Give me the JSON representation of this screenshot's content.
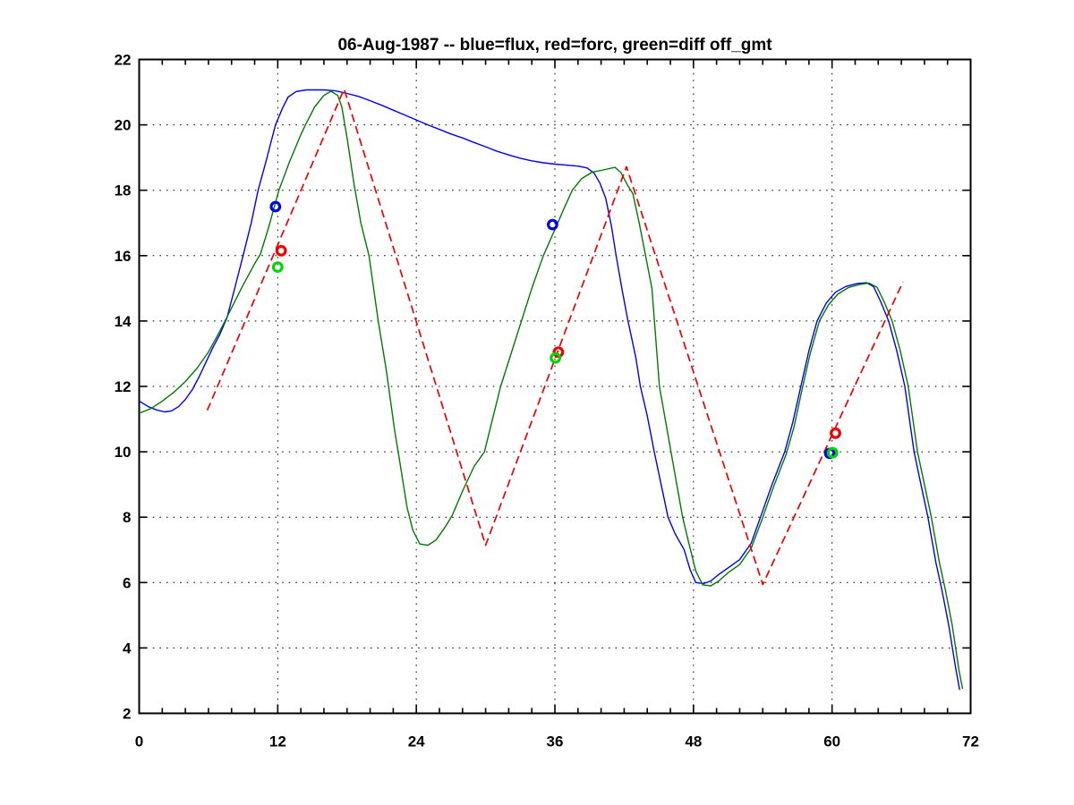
{
  "window": {
    "background": "#ffffff"
  },
  "chart_data": {
    "type": "line",
    "title": "06-Aug-1987 -- blue=flux, red=forc, green=diff off_gmt",
    "xlabel": "",
    "ylabel": "",
    "xlim": [
      0,
      72
    ],
    "ylim": [
      2,
      22
    ],
    "x_major_ticks": [
      0,
      12,
      24,
      36,
      48,
      60,
      72
    ],
    "x_minor_tick_step": 2,
    "y_ticks": [
      2,
      4,
      6,
      8,
      10,
      12,
      14,
      16,
      18,
      20,
      22
    ],
    "grid_x": [
      12,
      24,
      36,
      48,
      60
    ],
    "grid_y": [
      4,
      6,
      8,
      10,
      12,
      14,
      16,
      18,
      20
    ],
    "grid_style": "dotted",
    "axis_color": "#000000",
    "series": [
      {
        "name": "flux",
        "color": "#0000EE",
        "style": "solid",
        "points": [
          [
            0,
            11.55
          ],
          [
            0.8,
            11.38
          ],
          [
            1.5,
            11.28
          ],
          [
            2.2,
            11.22
          ],
          [
            2.8,
            11.25
          ],
          [
            3.4,
            11.38
          ],
          [
            4,
            11.6
          ],
          [
            4.6,
            11.9
          ],
          [
            5.2,
            12.3
          ],
          [
            5.8,
            12.75
          ],
          [
            6.4,
            13.2
          ],
          [
            7,
            13.6
          ],
          [
            7.6,
            14.1
          ],
          [
            8.2,
            14.9
          ],
          [
            9,
            16.0
          ],
          [
            9.7,
            17.0
          ],
          [
            10.3,
            18.0
          ],
          [
            11,
            18.9
          ],
          [
            11.8,
            20.0
          ],
          [
            12.4,
            20.5
          ],
          [
            12.9,
            20.85
          ],
          [
            13.6,
            21.02
          ],
          [
            14.5,
            21.07
          ],
          [
            16,
            21.07
          ],
          [
            17,
            21.04
          ],
          [
            18,
            20.96
          ],
          [
            19,
            20.87
          ],
          [
            20,
            20.74
          ],
          [
            21,
            20.6
          ],
          [
            22,
            20.45
          ],
          [
            23,
            20.3
          ],
          [
            24,
            20.15
          ],
          [
            25,
            20.0
          ],
          [
            26,
            19.86
          ],
          [
            27,
            19.72
          ],
          [
            28,
            19.6
          ],
          [
            29,
            19.46
          ],
          [
            30,
            19.33
          ],
          [
            31,
            19.19
          ],
          [
            32,
            19.08
          ],
          [
            33,
            18.98
          ],
          [
            34,
            18.9
          ],
          [
            35,
            18.84
          ],
          [
            36,
            18.8
          ],
          [
            37,
            18.77
          ],
          [
            38,
            18.74
          ],
          [
            38.8,
            18.68
          ],
          [
            39.4,
            18.52
          ],
          [
            39.9,
            18.22
          ],
          [
            40.4,
            17.75
          ],
          [
            40.9,
            16.9
          ],
          [
            41.3,
            16.0
          ],
          [
            41.8,
            15.0
          ],
          [
            42.3,
            14.05
          ],
          [
            43,
            12.9
          ],
          [
            43.4,
            12.0
          ],
          [
            44,
            11.1
          ],
          [
            44.6,
            10.0
          ],
          [
            45.2,
            9.0
          ],
          [
            45.8,
            8.0
          ],
          [
            46.4,
            7.5
          ],
          [
            47.2,
            7.0
          ],
          [
            47.7,
            6.4
          ],
          [
            48.2,
            6.0
          ],
          [
            48.9,
            5.97
          ],
          [
            49.5,
            6.05
          ],
          [
            50.2,
            6.25
          ],
          [
            51,
            6.45
          ],
          [
            52,
            6.7
          ],
          [
            53,
            7.2
          ],
          [
            53.8,
            8.0
          ],
          [
            54.8,
            9.0
          ],
          [
            55.9,
            10.0
          ],
          [
            56.6,
            10.9
          ],
          [
            57.3,
            12.0
          ],
          [
            58,
            13.1
          ],
          [
            58.7,
            14.0
          ],
          [
            59.5,
            14.55
          ],
          [
            60.3,
            14.88
          ],
          [
            61.2,
            15.06
          ],
          [
            62.2,
            15.15
          ],
          [
            63,
            15.17
          ],
          [
            63.6,
            15.05
          ],
          [
            64.2,
            14.6
          ],
          [
            64.9,
            14.0
          ],
          [
            65.6,
            13.1
          ],
          [
            66.3,
            12.0
          ],
          [
            67.1,
            10.0
          ],
          [
            67.7,
            9.0
          ],
          [
            68.3,
            8.0
          ],
          [
            69,
            6.6
          ],
          [
            69.5,
            5.8
          ],
          [
            70.1,
            4.7
          ],
          [
            70.7,
            3.4
          ],
          [
            71.05,
            2.72
          ]
        ]
      },
      {
        "name": "diff",
        "color": "#007A00",
        "style": "solid",
        "points": [
          [
            0,
            11.18
          ],
          [
            1,
            11.32
          ],
          [
            2,
            11.55
          ],
          [
            3,
            11.82
          ],
          [
            4,
            12.15
          ],
          [
            5,
            12.55
          ],
          [
            6,
            13.05
          ],
          [
            7,
            13.7
          ],
          [
            8,
            14.4
          ],
          [
            9,
            15.1
          ],
          [
            10,
            15.75
          ],
          [
            10.5,
            16.05
          ],
          [
            11.2,
            16.85
          ],
          [
            12.1,
            18.0
          ],
          [
            13,
            18.85
          ],
          [
            14,
            19.7
          ],
          [
            14.4,
            20.0
          ],
          [
            15.2,
            20.55
          ],
          [
            16,
            20.9
          ],
          [
            16.6,
            21.03
          ],
          [
            17.2,
            20.9
          ],
          [
            17.55,
            20.55
          ],
          [
            18.0,
            19.6
          ],
          [
            18.6,
            18.2
          ],
          [
            19.2,
            17.0
          ],
          [
            19.9,
            16.0
          ],
          [
            20.7,
            14.0
          ],
          [
            21.4,
            12.5
          ],
          [
            22.1,
            10.7
          ],
          [
            22.7,
            9.4
          ],
          [
            23.2,
            8.3
          ],
          [
            23.7,
            7.6
          ],
          [
            24.3,
            7.18
          ],
          [
            25.0,
            7.14
          ],
          [
            25.7,
            7.3
          ],
          [
            26.5,
            7.7
          ],
          [
            27.1,
            8.05
          ],
          [
            28,
            8.8
          ],
          [
            29,
            9.55
          ],
          [
            29.9,
            10.0
          ],
          [
            30.6,
            11.0
          ],
          [
            31.3,
            12.0
          ],
          [
            32.2,
            13.0
          ],
          [
            33.1,
            14.0
          ],
          [
            34,
            15.0
          ],
          [
            35,
            16.0
          ],
          [
            36,
            16.8
          ],
          [
            36.8,
            17.45
          ],
          [
            37.5,
            18.0
          ],
          [
            38.3,
            18.35
          ],
          [
            39.2,
            18.55
          ],
          [
            40.2,
            18.62
          ],
          [
            41.2,
            18.7
          ],
          [
            41.7,
            18.55
          ],
          [
            42.3,
            18.15
          ],
          [
            42.75,
            17.9
          ],
          [
            43.3,
            17.0
          ],
          [
            43.85,
            16.0
          ],
          [
            44.4,
            15.0
          ],
          [
            45.05,
            12.0
          ],
          [
            46.05,
            10.0
          ],
          [
            47.06,
            8.0
          ],
          [
            47.6,
            7.2
          ],
          [
            48.2,
            6.35
          ],
          [
            48.8,
            5.93
          ],
          [
            49.5,
            5.9
          ],
          [
            50.2,
            6.05
          ],
          [
            51,
            6.3
          ],
          [
            52,
            6.55
          ],
          [
            53,
            7.05
          ],
          [
            53.9,
            7.9
          ],
          [
            54.9,
            8.9
          ],
          [
            56,
            9.9
          ],
          [
            56.7,
            10.75
          ],
          [
            57.4,
            11.9
          ],
          [
            58.1,
            13.0
          ],
          [
            58.9,
            14.0
          ],
          [
            59.7,
            14.5
          ],
          [
            60.5,
            14.82
          ],
          [
            61.4,
            15.02
          ],
          [
            62.4,
            15.12
          ],
          [
            63.2,
            15.16
          ],
          [
            63.9,
            15.03
          ],
          [
            64.5,
            14.6
          ],
          [
            65.2,
            14.0
          ],
          [
            65.9,
            13.1
          ],
          [
            66.6,
            12.0
          ],
          [
            67.4,
            10.0
          ],
          [
            68,
            9.0
          ],
          [
            68.6,
            8.0
          ],
          [
            69.3,
            6.6
          ],
          [
            69.8,
            5.8
          ],
          [
            70.4,
            4.7
          ],
          [
            71,
            3.3
          ],
          [
            71.3,
            2.75
          ]
        ]
      },
      {
        "name": "forc",
        "color": "#EE0000",
        "style": "dashed",
        "points": [
          [
            5.9,
            11.27
          ],
          [
            17.75,
            21.1
          ],
          [
            30,
            7.14
          ],
          [
            42.2,
            18.72
          ],
          [
            54,
            5.94
          ],
          [
            66.15,
            15.2
          ]
        ]
      }
    ],
    "markers": [
      {
        "name": "flux-obs",
        "color": "#0000EE",
        "points": [
          [
            11.8,
            17.5
          ],
          [
            35.8,
            16.95
          ],
          [
            59.8,
            9.95
          ]
        ]
      },
      {
        "name": "forc-obs",
        "color": "#EE0000",
        "points": [
          [
            12.3,
            16.15
          ],
          [
            36.3,
            13.05
          ],
          [
            60.3,
            10.57
          ]
        ]
      },
      {
        "name": "diff-obs",
        "color": "#00D500",
        "points": [
          [
            12.0,
            15.65
          ],
          [
            36.05,
            12.87
          ],
          [
            60.05,
            9.97
          ]
        ]
      }
    ]
  }
}
